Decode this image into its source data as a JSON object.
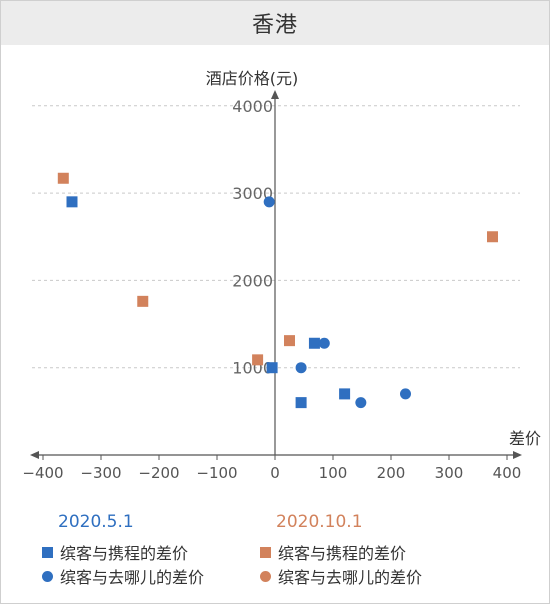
{
  "title": "香港",
  "colors": {
    "series_5_1": "#2f6fc0",
    "series_10_1": "#d2825c",
    "axis": "#555555",
    "grid": "#c9c9c9"
  },
  "chart_data": {
    "type": "scatter",
    "ylabel": "酒店价格(元)",
    "xlabel": "差价",
    "xlim": [
      -420,
      420
    ],
    "ylim": [
      0,
      4200
    ],
    "x_ticks": [
      -400,
      -300,
      -200,
      -100,
      0,
      100,
      200,
      300,
      400
    ],
    "y_ticks": [
      1000,
      2000,
      3000,
      4000
    ],
    "grid": "horizontal-dashed",
    "legend_placement": "bottom",
    "series": [
      {
        "name": "缤客与携程的差价",
        "group": "2020.5.1",
        "marker": "square",
        "color": "#2f6fc0",
        "points": [
          [
            -350,
            2900
          ],
          [
            -5,
            1000
          ],
          [
            45,
            600
          ],
          [
            68,
            1280
          ],
          [
            120,
            700
          ]
        ]
      },
      {
        "name": "缤客与去哪儿的差价",
        "group": "2020.5.1",
        "marker": "circle",
        "color": "#2f6fc0",
        "points": [
          [
            -10,
            2900
          ],
          [
            45,
            1000
          ],
          [
            85,
            1280
          ],
          [
            148,
            600
          ],
          [
            225,
            700
          ]
        ]
      },
      {
        "name": "缤客与携程的差价",
        "group": "2020.10.1",
        "marker": "square",
        "color": "#d2825c",
        "points": [
          [
            -365,
            3170
          ],
          [
            -228,
            1760
          ],
          [
            -30,
            1090
          ],
          [
            25,
            1310
          ],
          [
            375,
            2500
          ]
        ]
      },
      {
        "name": "缤客与去哪儿的差价",
        "group": "2020.10.1",
        "marker": "circle",
        "color": "#d2825c",
        "points": []
      }
    ]
  },
  "legend": {
    "group1_label": "2020.5.1",
    "group2_label": "2020.10.1",
    "g1_square": "缤客与携程的差价",
    "g1_circle": "缤客与去哪儿的差价",
    "g2_square": "缤客与携程的差价",
    "g2_circle": "缤客与去哪儿的差价"
  }
}
